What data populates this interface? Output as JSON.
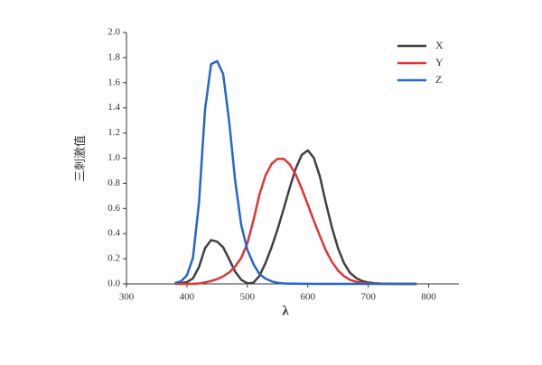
{
  "chart_data": {
    "type": "line",
    "x_label": "λ",
    "y_label": "三刺激值",
    "x": [
      380,
      390,
      400,
      410,
      420,
      430,
      440,
      450,
      460,
      470,
      480,
      490,
      500,
      510,
      520,
      530,
      540,
      550,
      560,
      570,
      580,
      590,
      600,
      610,
      620,
      630,
      640,
      650,
      660,
      670,
      680,
      690,
      700,
      710,
      720,
      730,
      740,
      750,
      760,
      770,
      780
    ],
    "series": [
      {
        "name": "X",
        "color": "#404040",
        "values": [
          0.0014,
          0.0042,
          0.0143,
          0.0435,
          0.1344,
          0.2839,
          0.3483,
          0.3362,
          0.2908,
          0.1954,
          0.0956,
          0.032,
          0.0049,
          0.0093,
          0.0633,
          0.1655,
          0.2904,
          0.4334,
          0.5945,
          0.7621,
          0.9163,
          1.0263,
          1.0622,
          1.0026,
          0.8544,
          0.6424,
          0.4479,
          0.2835,
          0.1649,
          0.0874,
          0.0468,
          0.0227,
          0.0114,
          0.0058,
          0.0029,
          0.0014,
          0.0007,
          0.0003,
          0.0002,
          0.0001,
          0
        ]
      },
      {
        "name": "Y",
        "color": "#e03535",
        "values": [
          0,
          0.0001,
          0.0004,
          0.0012,
          0.004,
          0.0116,
          0.023,
          0.038,
          0.06,
          0.091,
          0.139,
          0.208,
          0.323,
          0.503,
          0.71,
          0.862,
          0.954,
          0.995,
          0.995,
          0.952,
          0.87,
          0.757,
          0.631,
          0.503,
          0.381,
          0.265,
          0.175,
          0.107,
          0.061,
          0.032,
          0.017,
          0.0082,
          0.0041,
          0.0021,
          0.001,
          0.0005,
          0.0003,
          0.0001,
          0.0001,
          0,
          0
        ]
      },
      {
        "name": "Z",
        "color": "#2466cc",
        "values": [
          0.0065,
          0.0201,
          0.0679,
          0.2074,
          0.6456,
          1.3856,
          1.7471,
          1.7721,
          1.6692,
          1.2876,
          0.813,
          0.4652,
          0.272,
          0.1582,
          0.0782,
          0.0422,
          0.0203,
          0.0087,
          0.0039,
          0.0021,
          0.0017,
          0.0011,
          0.0008,
          0.0003,
          0.0002,
          0,
          0,
          0,
          0,
          0,
          0,
          0,
          0,
          0,
          0,
          0,
          0,
          0,
          0,
          0,
          0
        ]
      }
    ],
    "xlim": [
      300,
      850
    ],
    "ylim": [
      0,
      2.0
    ],
    "xticks": [
      300,
      400,
      500,
      600,
      700,
      800
    ],
    "yticks": [
      {
        "value": 0,
        "label": "0.0"
      },
      0.2,
      0.4,
      0.6,
      0.8,
      {
        "value": 1,
        "label": "1.0"
      },
      1.2,
      1.4,
      1.6,
      1.8,
      {
        "value": 2,
        "label": "2.0"
      }
    ],
    "legend": "upper right"
  }
}
